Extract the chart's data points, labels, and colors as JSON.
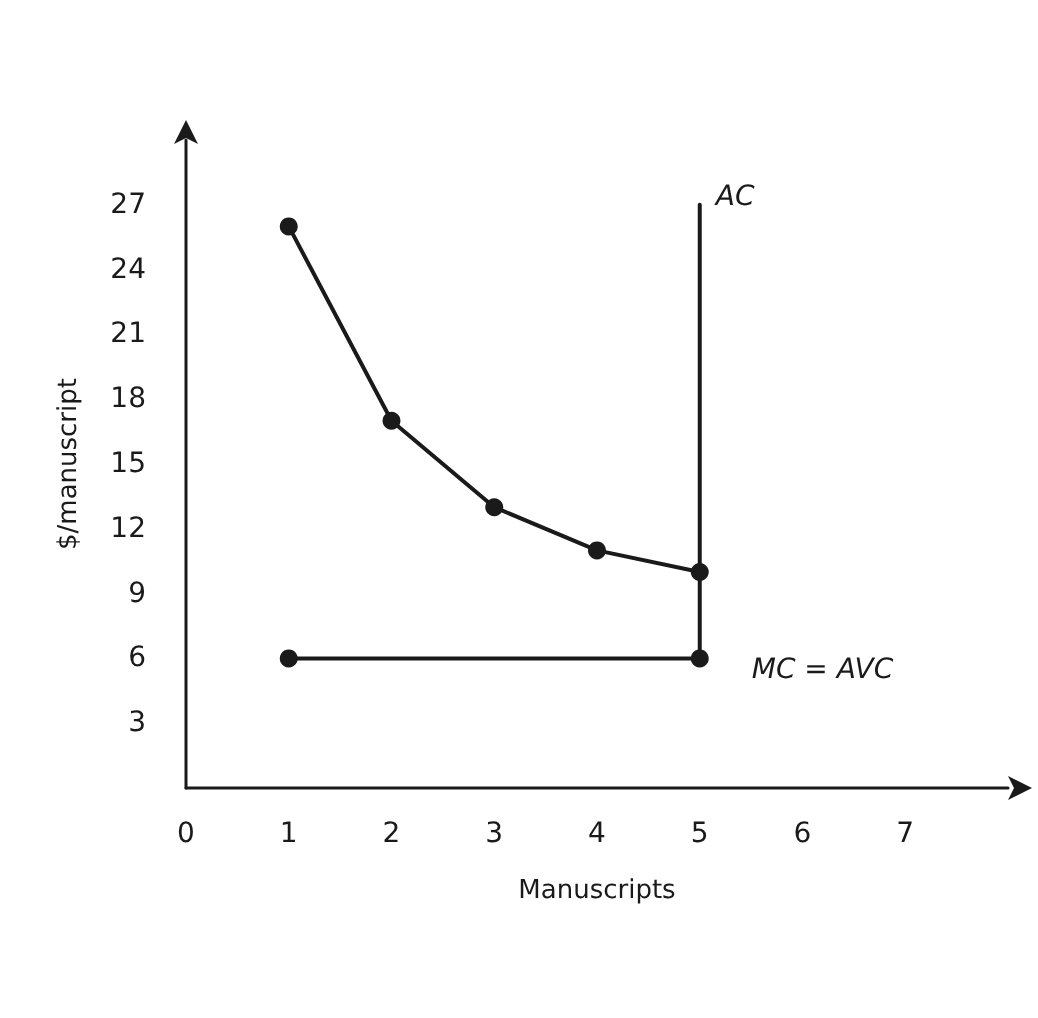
{
  "chart_data": {
    "type": "line",
    "xlabel": "Manuscripts",
    "ylabel": "$/manuscript",
    "xlim": [
      0,
      8
    ],
    "xticks": [
      0,
      1,
      2,
      3,
      4,
      5,
      6,
      7
    ],
    "ylim": [
      0,
      30
    ],
    "yticks": [
      3,
      6,
      9,
      12,
      15,
      18,
      21,
      24,
      27
    ],
    "grid": false,
    "legend": false,
    "line_style": "solid",
    "series": [
      {
        "color": "#1a1a1a",
        "x": [
          1,
          2,
          3,
          4,
          5
        ],
        "values": [
          26,
          17,
          13,
          11,
          10
        ],
        "marker": "circle"
      },
      {
        "name": "AC",
        "color": "#1a1a1a",
        "x": [
          5,
          5
        ],
        "values": [
          6,
          27
        ]
      },
      {
        "name": "MC = AVC",
        "color": "#1a1a1a",
        "x": [
          1,
          5
        ],
        "values": [
          6,
          6
        ],
        "marker": "circle"
      }
    ]
  }
}
